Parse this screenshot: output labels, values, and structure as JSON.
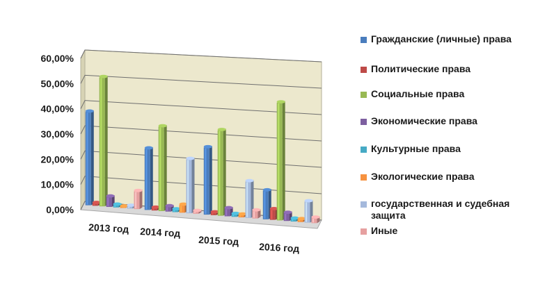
{
  "chart_data": {
    "type": "bar",
    "categories": [
      "2013 год",
      "2014 год",
      "2015 год",
      "2016 год"
    ],
    "series": [
      {
        "name": "Гражданские (личные) права",
        "values": [
          37,
          24,
          26,
          11
        ],
        "color": "#4a7dbd"
      },
      {
        "name": "Политические права",
        "values": [
          1,
          1,
          1,
          4
        ],
        "color": "#be4b48"
      },
      {
        "name": "Социальные права",
        "values": [
          51,
          33,
          33,
          45
        ],
        "color": "#98b954"
      },
      {
        "name": "Экономические права",
        "values": [
          4,
          2,
          3,
          3
        ],
        "color": "#7d5fa0"
      },
      {
        "name": "Культурные права",
        "values": [
          1,
          1,
          1,
          1
        ],
        "color": "#46aac5"
      },
      {
        "name": "Экологические права",
        "values": [
          0.5,
          3,
          1,
          1
        ],
        "color": "#f69240"
      },
      {
        "name": "государственная и судебная защита",
        "values": [
          1,
          21,
          14,
          8
        ],
        "color": "#a5b9dc"
      },
      {
        "name": "Иные",
        "values": [
          7,
          1,
          3,
          2
        ],
        "color": "#e6a0a0"
      }
    ],
    "yticks": [
      "0,00%",
      "10,00%",
      "20,00%",
      "30,00%",
      "40,00%",
      "50,00%",
      "60,00%"
    ],
    "ylim": [
      0,
      60
    ],
    "grid": true,
    "legend_position": "right"
  }
}
